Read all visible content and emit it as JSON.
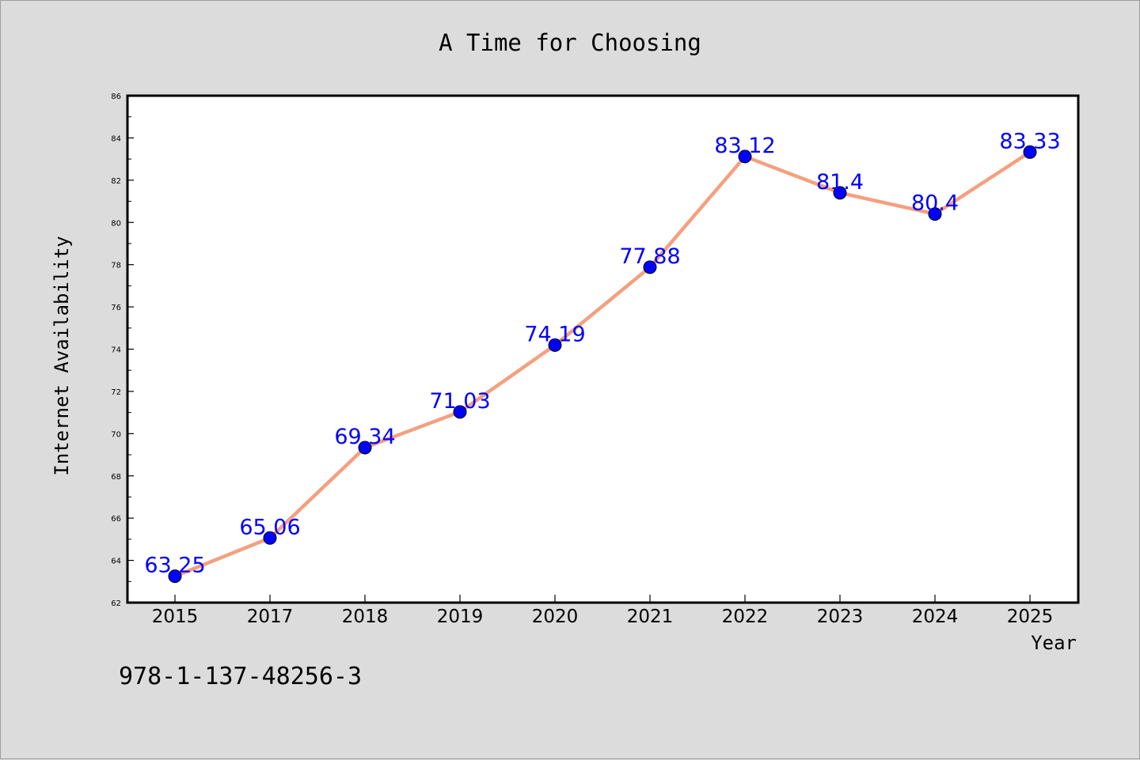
{
  "chart_data": {
    "type": "line",
    "title": "A Time for Choosing",
    "xlabel": "Year",
    "ylabel": "Internet Availability",
    "categories": [
      "2015",
      "2017",
      "2018",
      "2019",
      "2020",
      "2021",
      "2022",
      "2023",
      "2024",
      "2025"
    ],
    "series": [
      {
        "values": [
          63.25,
          65.06,
          69.34,
          71.03,
          74.19,
          77.88,
          83.12,
          81.4,
          80.4,
          83.33
        ],
        "data_labels": [
          "63.25",
          "65.06",
          "69.34",
          "71.03",
          "74.19",
          "77.88",
          "83.12",
          "81.4",
          "80.4",
          "83.33"
        ],
        "line_color": "#f4a07e",
        "marker_color": "#0000ff",
        "label_color": "#0000ff"
      }
    ],
    "ylim": [
      62,
      86
    ],
    "yticks": [
      "62",
      "64",
      "66",
      "68",
      "70",
      "72",
      "74",
      "76",
      "78",
      "80",
      "82",
      "84",
      "86"
    ],
    "grid": false,
    "legend": "none",
    "annotation": "978-1-137-48256-3",
    "background_color": "#dcdcdc",
    "plot_background_color": "#ffffff"
  }
}
